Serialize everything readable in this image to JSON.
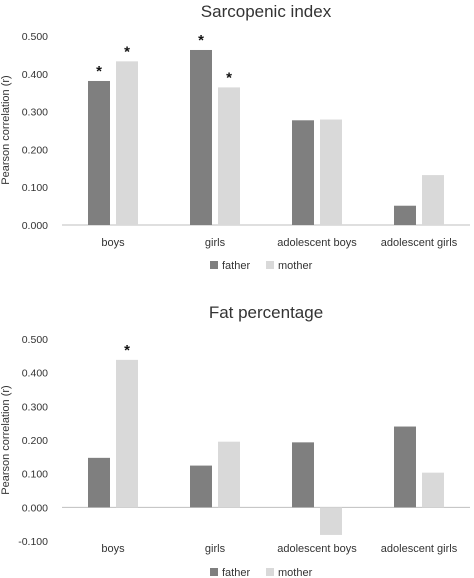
{
  "chart_data": [
    {
      "type": "bar",
      "title": "Sarcopenic index",
      "ylabel": "Pearson correlation (r)",
      "ylim": [
        0,
        0.5
      ],
      "yticks": [
        0,
        0.1,
        0.2,
        0.3,
        0.4,
        0.5
      ],
      "ytick_labels": [
        "0.000",
        "0.100",
        "0.200",
        "0.300",
        "0.400",
        "0.500"
      ],
      "categories": [
        "boys",
        "girls",
        "adolescent boys",
        "adolescent girls"
      ],
      "series": [
        {
          "name": "father",
          "color": "#7f7f7f",
          "values": [
            0.381,
            0.463,
            0.277,
            0.051
          ],
          "significant": [
            true,
            true,
            false,
            false
          ]
        },
        {
          "name": "mother",
          "color": "#d9d9d9",
          "values": [
            0.433,
            0.364,
            0.279,
            0.132
          ],
          "significant": [
            true,
            true,
            false,
            false
          ]
        }
      ],
      "significance_marker": "*",
      "legend_position": "bottom",
      "grid": false
    },
    {
      "type": "bar",
      "title": "Fat percentage",
      "ylabel": "Pearson correlation (r)",
      "ylim": [
        -0.1,
        0.5
      ],
      "yticks": [
        -0.1,
        0,
        0.1,
        0.2,
        0.3,
        0.4,
        0.5
      ],
      "ytick_labels": [
        "-0.100",
        "0.000",
        "0.100",
        "0.200",
        "0.300",
        "0.400",
        "0.500"
      ],
      "categories": [
        "boys",
        "girls",
        "adolescent boys",
        "adolescent girls"
      ],
      "series": [
        {
          "name": "father",
          "color": "#7f7f7f",
          "values": [
            0.147,
            0.124,
            0.193,
            0.24
          ],
          "significant": [
            false,
            false,
            false,
            false
          ]
        },
        {
          "name": "mother",
          "color": "#d9d9d9",
          "values": [
            0.438,
            0.195,
            -0.082,
            0.103
          ],
          "significant": [
            true,
            false,
            false,
            false
          ]
        }
      ],
      "significance_marker": "*",
      "legend_position": "bottom",
      "grid": false
    }
  ]
}
